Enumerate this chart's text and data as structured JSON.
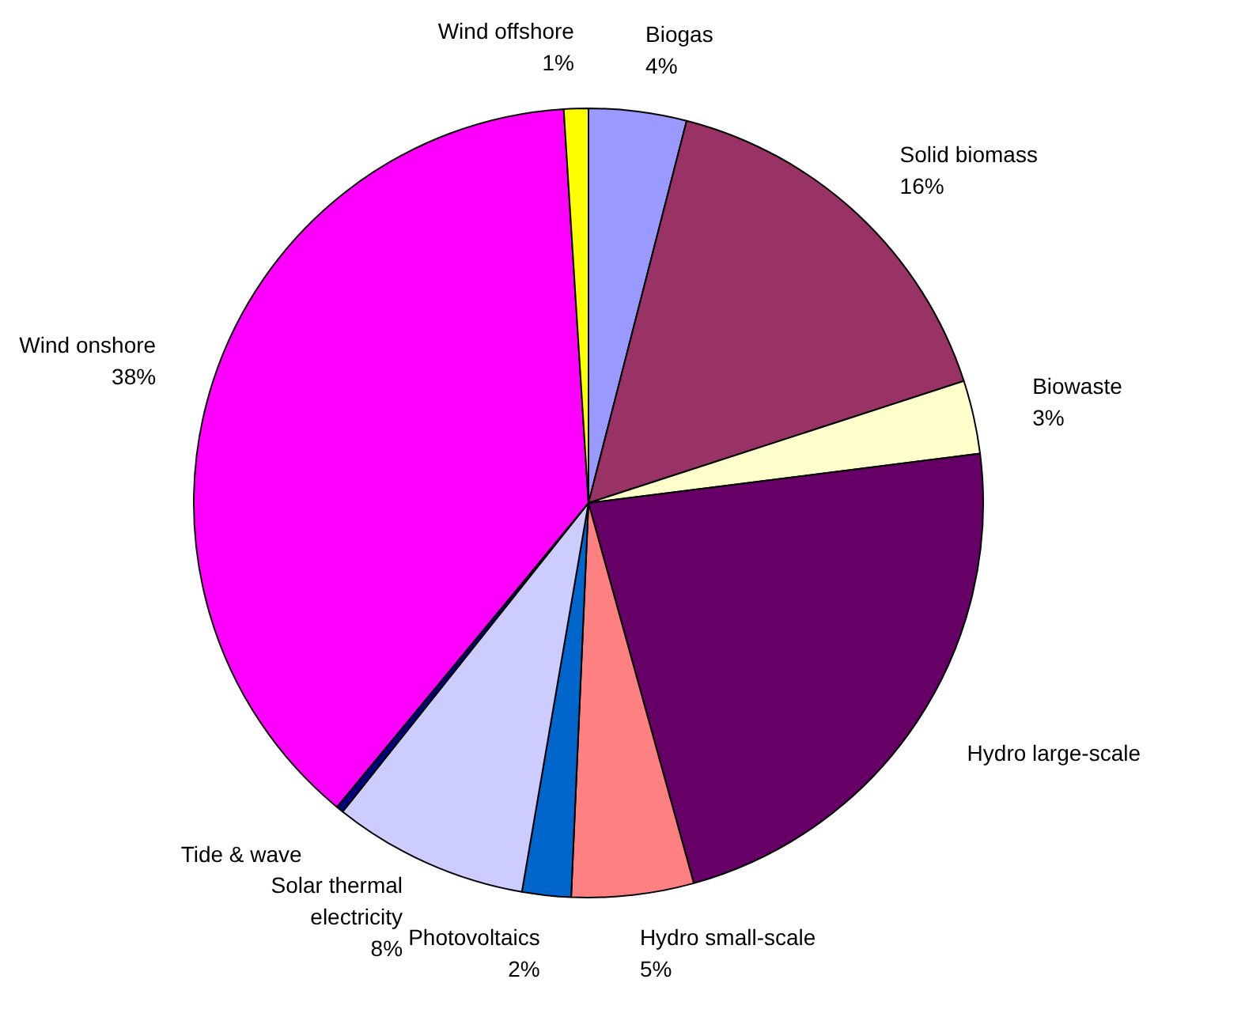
{
  "chart_data": {
    "type": "pie",
    "categories": [
      "Biogas",
      "Solid biomass",
      "Biowaste",
      "Hydro large-scale",
      "Hydro small-scale",
      "Photovoltaics",
      "Solar thermal electricity",
      "Tide & wave",
      "Wind onshore",
      "Wind offshore"
    ],
    "values": [
      4,
      16,
      3,
      22.7,
      5,
      2,
      8,
      0.3,
      38,
      1
    ],
    "colors": [
      "#9999ff",
      "#993366",
      "#ffffcc",
      "#660066",
      "#ff8080",
      "#0066cc",
      "#ccccff",
      "#000080",
      "#ff00ff",
      "#ffff00"
    ],
    "value_labels": [
      "4%",
      "16%",
      "3%",
      null,
      "5%",
      "2%",
      "8%",
      null,
      "38%",
      "1%"
    ]
  }
}
